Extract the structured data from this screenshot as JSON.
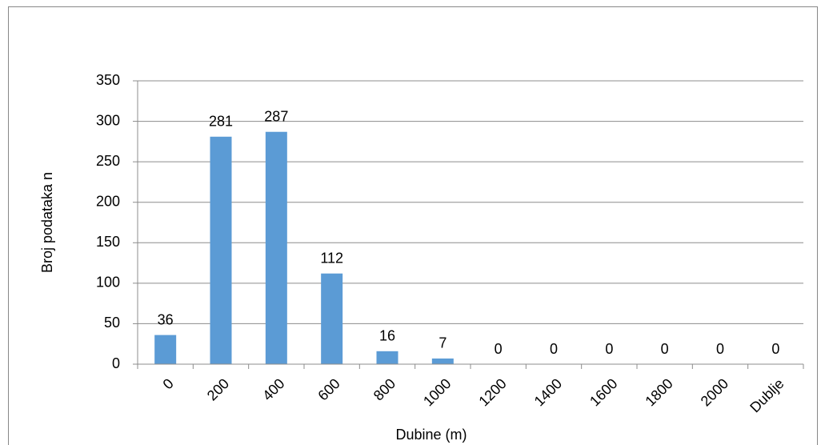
{
  "chart_data": {
    "type": "bar",
    "x_label": "Dubine (m)",
    "y_label": "Broj podataka n",
    "categories": [
      "0",
      "200",
      "400",
      "600",
      "800",
      "1000",
      "1200",
      "1400",
      "1600",
      "1800",
      "2000",
      "Dublje"
    ],
    "values": [
      36,
      281,
      287,
      112,
      16,
      7,
      0,
      0,
      0,
      0,
      0,
      0
    ],
    "color": "#5b9bd5",
    "ylim": [
      0,
      350
    ],
    "yticks": [
      0,
      50,
      100,
      150,
      200,
      250,
      300,
      350
    ],
    "grid": true,
    "data_labels": true
  }
}
